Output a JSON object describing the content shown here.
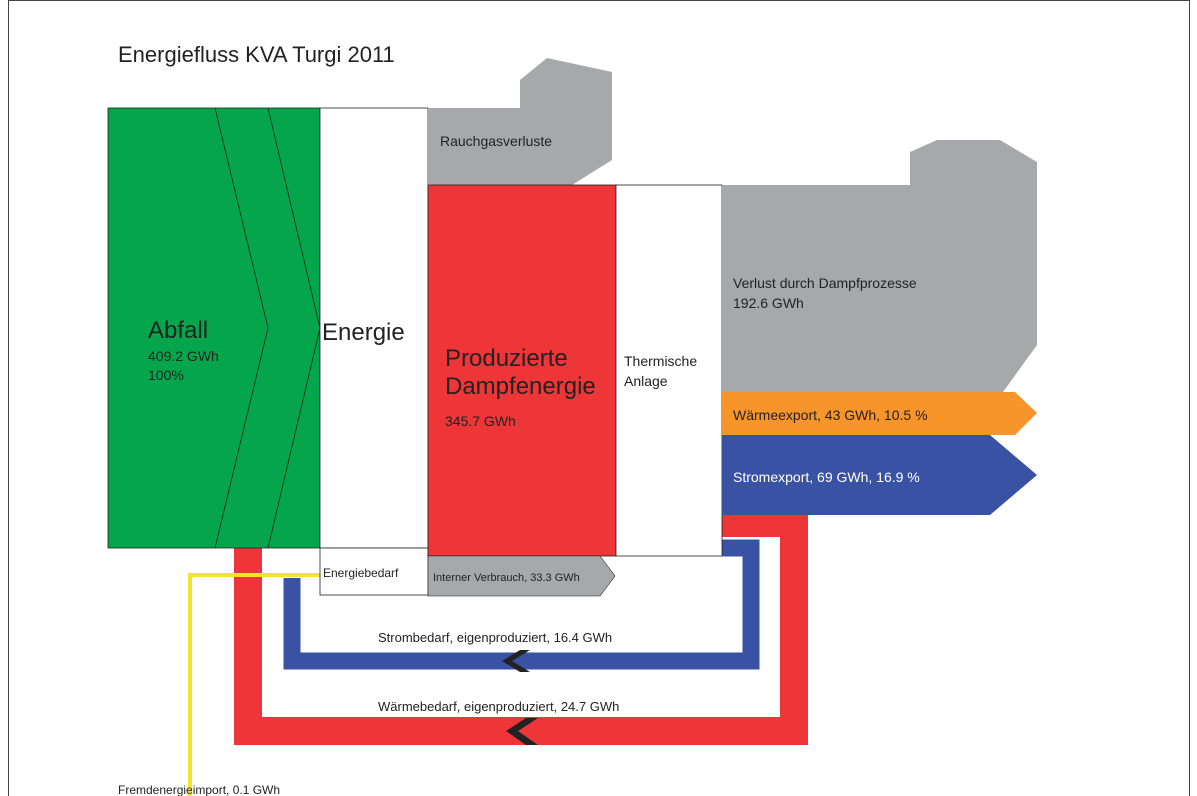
{
  "title": "Energiefluss KVA Turgi 2011",
  "nodes": [
    {
      "label": "Abfall",
      "value": "409.2 GWh",
      "share": "100%"
    },
    {
      "label": "Energie"
    },
    {
      "label": "Rauchgasverluste"
    },
    {
      "label": "Produzierte Dampfenergie",
      "value": "345.7 GWh"
    },
    {
      "label": "Thermische Anlage"
    },
    {
      "label": "Verlust durch Dampfprozesse",
      "value": "192.6 GWh"
    },
    {
      "label": "Wärmeexport, 43 GWh, 10.5 %"
    },
    {
      "label": "Stromexport, 69 GWh, 16.9 %"
    },
    {
      "label": "Energiebedarf"
    },
    {
      "label": "Interner Verbrauch, 33.3 GWh"
    },
    {
      "label": "Strombedarf, eigenproduziert, 16.4 GWh"
    },
    {
      "label": "Wärmebedarf, eigenproduziert, 24.7 GWh"
    },
    {
      "label": "Fremdenergieimport, 0.1 GWh"
    }
  ]
}
